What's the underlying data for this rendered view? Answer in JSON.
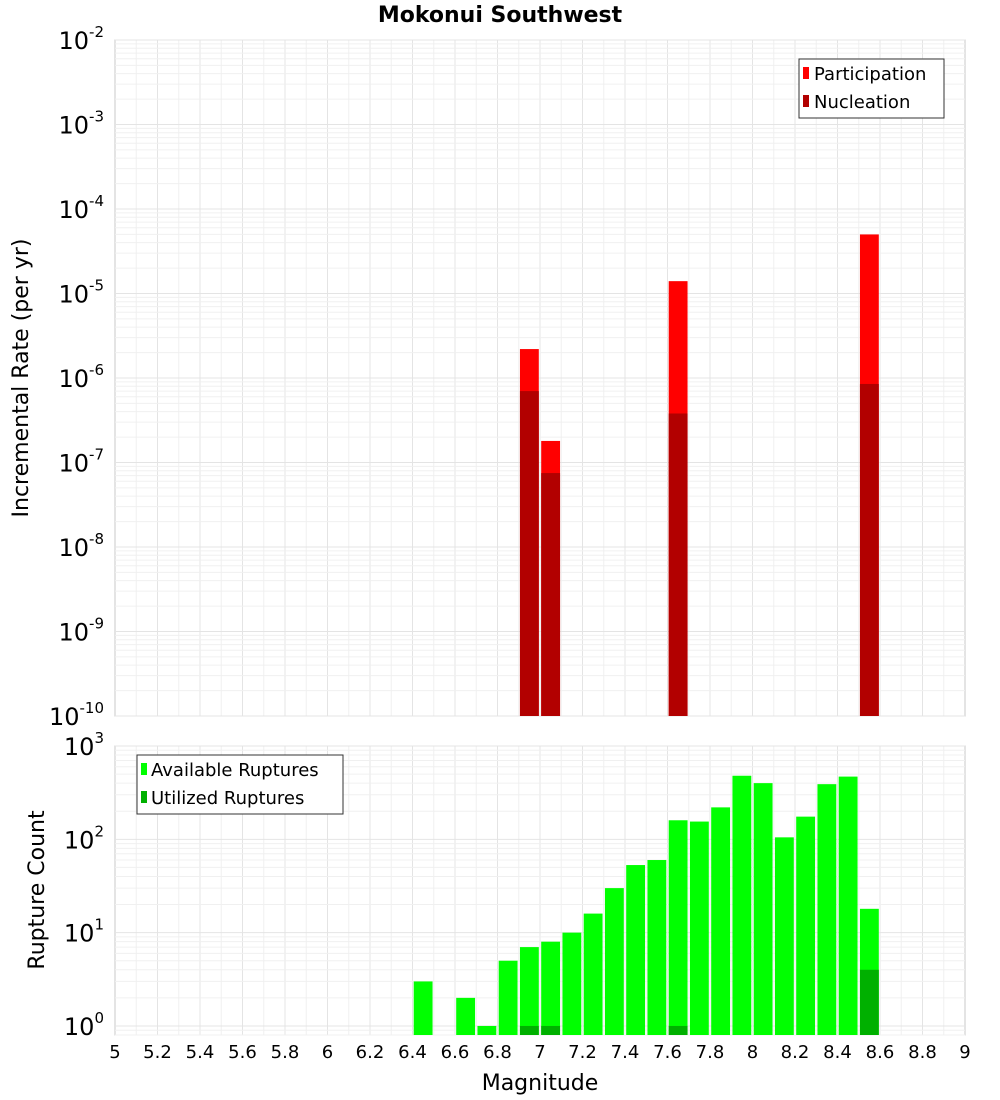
{
  "chart_data": [
    {
      "type": "bar",
      "title": "Mokonui Southwest",
      "xlabel": "",
      "ylabel": "Incremental Rate (per yr)",
      "yscale": "log",
      "ylim": [
        1e-10,
        0.01
      ],
      "xlim": [
        5,
        9
      ],
      "bin_width": 0.1,
      "y_ticks": [
        "10^-2",
        "10^-3",
        "10^-4",
        "10^-5",
        "10^-6",
        "10^-7",
        "10^-8",
        "10^-9",
        "10^-10"
      ],
      "legend": {
        "placement": "top-right",
        "entries": [
          "Participation",
          "Nucleation"
        ]
      },
      "series": [
        {
          "name": "Participation",
          "color": "#ff0000",
          "x": [
            6.95,
            7.05,
            7.65,
            8.55
          ],
          "values": [
            2.2e-06,
            1.8e-07,
            1.4e-05,
            5e-05
          ]
        },
        {
          "name": "Nucleation",
          "color": "#b20000",
          "x": [
            6.95,
            7.05,
            7.65,
            8.55
          ],
          "values": [
            7e-07,
            7.5e-08,
            3.8e-07,
            8.5e-07
          ]
        }
      ],
      "grid": true
    },
    {
      "type": "bar",
      "title": "",
      "xlabel": "Magnitude",
      "ylabel": "Rupture Count",
      "yscale": "log",
      "ylim": [
        0.8,
        1000
      ],
      "xlim": [
        5,
        9
      ],
      "bin_width": 0.1,
      "y_ticks": [
        "10^3",
        "10^2",
        "10^1",
        "10^0"
      ],
      "x_ticks": [
        "5",
        "5.2",
        "5.4",
        "5.6",
        "5.8",
        "6",
        "6.2",
        "6.4",
        "6.6",
        "6.8",
        "7",
        "7.2",
        "7.4",
        "7.6",
        "7.8",
        "8",
        "8.2",
        "8.4",
        "8.6",
        "8.8",
        "9"
      ],
      "legend": {
        "placement": "top-left",
        "entries": [
          "Available Ruptures",
          "Utilized Ruptures"
        ]
      },
      "series": [
        {
          "name": "Available Ruptures",
          "color": "#00ff00",
          "x": [
            6.45,
            6.65,
            6.75,
            6.85,
            6.95,
            7.05,
            7.15,
            7.25,
            7.35,
            7.45,
            7.55,
            7.65,
            7.75,
            7.85,
            7.95,
            8.05,
            8.15,
            8.25,
            8.35,
            8.45,
            8.55
          ],
          "values": [
            3,
            2,
            1,
            5,
            7,
            8,
            10,
            16,
            30,
            53,
            60,
            160,
            155,
            220,
            480,
            400,
            105,
            175,
            390,
            470,
            18
          ]
        },
        {
          "name": "Utilized Ruptures",
          "color": "#00b000",
          "x": [
            6.95,
            7.05,
            7.65,
            8.55
          ],
          "values": [
            1,
            1,
            1,
            4
          ]
        }
      ],
      "grid": true
    }
  ]
}
